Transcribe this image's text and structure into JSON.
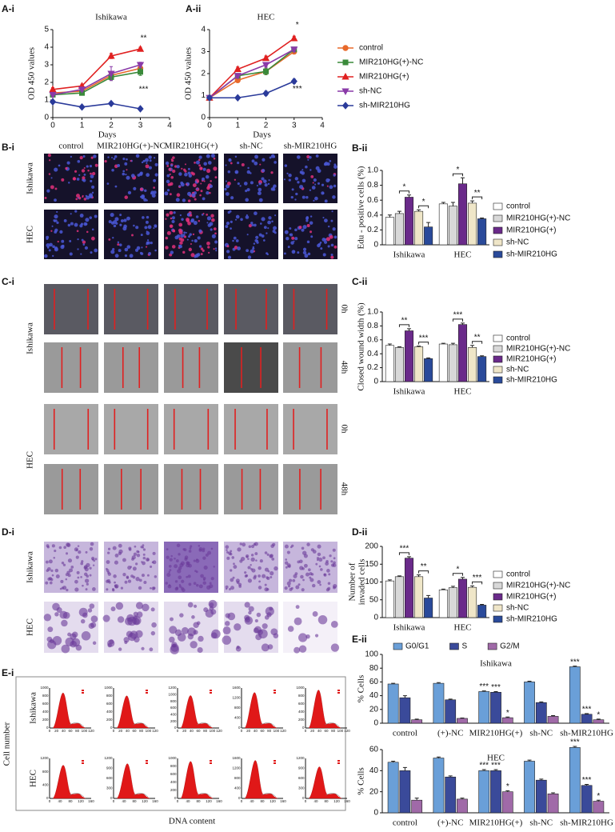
{
  "chart_data": [
    {
      "type": "line",
      "panel": "A-i",
      "title": "Ishikawa",
      "xlabel": "Days",
      "ylabel": [
        "OD 450 values"
      ],
      "x": [
        0,
        1,
        2,
        3
      ],
      "xlim": [
        0,
        4
      ],
      "xticks": [
        0,
        1,
        2,
        3,
        4
      ],
      "ylim": [
        0,
        5
      ],
      "yticks": [
        0,
        1,
        2,
        3,
        4,
        5
      ],
      "legend": "right",
      "series": [
        {
          "name": "control",
          "color": "#e8692a",
          "marker": "circle",
          "values": [
            1.4,
            1.5,
            2.4,
            2.8
          ],
          "errors": [
            0.1,
            0.1,
            0.15,
            0.15
          ]
        },
        {
          "name": "MIR210HG(+)-NC",
          "color": "#3a8a3a",
          "marker": "square",
          "values": [
            1.3,
            1.4,
            2.3,
            2.6
          ],
          "errors": [
            0.1,
            0.1,
            0.15,
            0.2
          ]
        },
        {
          "name": "MIR210HG(+)",
          "color": "#e02020",
          "marker": "triangle",
          "values": [
            1.6,
            1.8,
            3.5,
            3.9
          ],
          "errors": [
            0.1,
            0.1,
            0.15,
            0.1
          ]
        },
        {
          "name": "sh-NC",
          "color": "#8a3aa8",
          "marker": "triangle-down",
          "values": [
            1.3,
            1.6,
            2.5,
            3.0
          ],
          "errors": [
            0.1,
            0.1,
            0.4,
            0.15
          ]
        },
        {
          "name": "sh-MIR210HG",
          "color": "#2a3a9a",
          "marker": "diamond",
          "values": [
            0.9,
            0.6,
            0.8,
            0.5
          ],
          "errors": [
            0.05,
            0.05,
            0.05,
            0.05
          ]
        }
      ],
      "annotations": [
        {
          "text": "**",
          "x": 3,
          "y": 4.5
        },
        {
          "text": "***",
          "x": 3,
          "y": 1.6
        }
      ]
    },
    {
      "type": "line",
      "panel": "A-ii",
      "title": "HEC",
      "xlabel": "Days",
      "ylabel": [
        "OD 450 values"
      ],
      "x": [
        0,
        1,
        2,
        3
      ],
      "xlim": [
        0,
        4
      ],
      "xticks": [
        0,
        1,
        2,
        3,
        4
      ],
      "ylim": [
        0,
        4
      ],
      "yticks": [
        0,
        1,
        2,
        3,
        4
      ],
      "series": [
        {
          "color": "#e8692a",
          "marker": "circle",
          "values": [
            0.9,
            1.7,
            2.1,
            3.0
          ],
          "errors": [
            0.05,
            0.1,
            0.15,
            0.1
          ]
        },
        {
          "color": "#3a8a3a",
          "marker": "square",
          "values": [
            0.9,
            1.9,
            2.1,
            3.1
          ],
          "errors": [
            0.05,
            0.1,
            0.15,
            0.1
          ]
        },
        {
          "color": "#e02020",
          "marker": "triangle",
          "values": [
            0.9,
            2.2,
            2.7,
            3.6
          ],
          "errors": [
            0.05,
            0.1,
            0.1,
            0.1
          ]
        },
        {
          "color": "#8a3aa8",
          "marker": "triangle-down",
          "values": [
            0.9,
            1.9,
            2.4,
            3.1
          ],
          "errors": [
            0.05,
            0.1,
            0.1,
            0.1
          ]
        },
        {
          "color": "#2a3a9a",
          "marker": "diamond",
          "values": [
            0.9,
            0.9,
            1.1,
            1.65
          ],
          "errors": [
            0.05,
            0.05,
            0.1,
            0.1
          ]
        }
      ],
      "annotations": [
        {
          "text": "*",
          "x": 3,
          "y": 4.2
        },
        {
          "text": "***",
          "x": 3,
          "y": 1.3
        }
      ]
    },
    {
      "type": "bar",
      "panel": "B-ii",
      "ylabel": [
        "Edu - positive cells (%)"
      ],
      "categories": [
        "Ishikawa",
        "HEC"
      ],
      "ylim": [
        0,
        1
      ],
      "yticks": [
        0,
        0.2,
        0.4,
        0.6,
        0.8,
        {
          "value": 1,
          "label": "1.0"
        }
      ],
      "legend": "right",
      "series": [
        {
          "name": "control",
          "color": "#ffffff",
          "values": [
            0.37,
            0.55
          ],
          "errors": [
            0.03,
            0.02
          ]
        },
        {
          "name": "MIR210HG(+)-NC",
          "color": "#d8d8d8",
          "values": [
            0.42,
            0.52
          ],
          "errors": [
            0.03,
            0.05
          ]
        },
        {
          "name": "MIR210HG(+)",
          "color": "#6a2a8a",
          "values": [
            0.64,
            0.82
          ],
          "errors": [
            0.03,
            0.08
          ]
        },
        {
          "name": "sh-NC",
          "color": "#efe6c8",
          "values": [
            0.45,
            0.56
          ],
          "errors": [
            0.02,
            0.03
          ]
        },
        {
          "name": "sh-MIR210HG",
          "color": "#2a4a9a",
          "values": [
            0.24,
            0.35
          ],
          "errors": [
            0.06,
            0.01
          ]
        }
      ],
      "brackets": [
        {
          "text": "*",
          "category": "Ishikawa",
          "between": [
            "MIR210HG(+)-NC",
            "MIR210HG(+)"
          ]
        },
        {
          "text": "*",
          "category": "Ishikawa",
          "between": [
            "sh-NC",
            "sh-MIR210HG"
          ]
        },
        {
          "text": "*",
          "category": "HEC",
          "between": [
            "MIR210HG(+)-NC",
            "MIR210HG(+)"
          ]
        },
        {
          "text": "**",
          "category": "HEC",
          "between": [
            "sh-NC",
            "sh-MIR210HG"
          ]
        }
      ]
    },
    {
      "type": "bar",
      "panel": "C-ii",
      "ylabel": [
        "Closed wound width (%)"
      ],
      "categories": [
        "Ishikawa",
        "HEC"
      ],
      "ylim": [
        0,
        1
      ],
      "yticks": [
        0,
        0.2,
        0.4,
        0.6,
        0.8,
        {
          "value": 1,
          "label": "1.0"
        }
      ],
      "legend": "right",
      "series": [
        {
          "name": "control",
          "color": "#ffffff",
          "values": [
            0.52,
            0.54
          ],
          "errors": [
            0.02,
            0.01
          ]
        },
        {
          "name": "MIR210HG(+)-NC",
          "color": "#d8d8d8",
          "values": [
            0.49,
            0.53
          ],
          "errors": [
            0.01,
            0.02
          ]
        },
        {
          "name": "MIR210HG(+)",
          "color": "#6a2a8a",
          "values": [
            0.73,
            0.82
          ],
          "errors": [
            0.03,
            0.02
          ]
        },
        {
          "name": "sh-NC",
          "color": "#efe6c8",
          "values": [
            0.5,
            0.49
          ],
          "errors": [
            0.01,
            0.03
          ]
        },
        {
          "name": "sh-MIR210HG",
          "color": "#2a4a9a",
          "values": [
            0.33,
            0.36
          ],
          "errors": [
            0.01,
            0.01
          ]
        }
      ],
      "brackets": [
        {
          "text": "**",
          "category": "Ishikawa",
          "between": [
            "MIR210HG(+)-NC",
            "MIR210HG(+)"
          ]
        },
        {
          "text": "***",
          "category": "Ishikawa",
          "between": [
            "sh-NC",
            "sh-MIR210HG"
          ]
        },
        {
          "text": "***",
          "category": "HEC",
          "between": [
            "MIR210HG(+)-NC",
            "MIR210HG(+)"
          ]
        },
        {
          "text": "**",
          "category": "HEC",
          "between": [
            "sh-NC",
            "sh-MIR210HG"
          ]
        }
      ]
    },
    {
      "type": "bar",
      "panel": "D-ii",
      "ylabel": [
        "Number of",
        "invaded cells"
      ],
      "categories": [
        "Ishikawa",
        "HEC"
      ],
      "ylim": [
        0,
        200
      ],
      "yticks": [
        0,
        50,
        100,
        150,
        200
      ],
      "legend": "right",
      "series": [
        {
          "name": "control",
          "color": "#ffffff",
          "values": [
            103,
            78
          ],
          "errors": [
            3,
            2
          ]
        },
        {
          "name": "MIR210HG(+)-NC",
          "color": "#d8d8d8",
          "values": [
            115,
            84
          ],
          "errors": [
            2,
            4
          ]
        },
        {
          "name": "MIR210HG(+)",
          "color": "#6a2a8a",
          "values": [
            167,
            108
          ],
          "errors": [
            4,
            5
          ]
        },
        {
          "name": "sh-NC",
          "color": "#efe6c8",
          "values": [
            115,
            85
          ],
          "errors": [
            5,
            4
          ]
        },
        {
          "name": "sh-MIR210HG",
          "color": "#2a4a9a",
          "values": [
            55,
            35
          ],
          "errors": [
            7,
            2
          ]
        }
      ],
      "brackets": [
        {
          "text": "***",
          "category": "Ishikawa",
          "between": [
            "MIR210HG(+)-NC",
            "MIR210HG(+)"
          ]
        },
        {
          "text": "**",
          "category": "Ishikawa",
          "between": [
            "sh-NC",
            "sh-MIR210HG"
          ]
        },
        {
          "text": "*",
          "category": "HEC",
          "between": [
            "MIR210HG(+)-NC",
            "MIR210HG(+)"
          ]
        },
        {
          "text": "***",
          "category": "HEC",
          "between": [
            "sh-NC",
            "sh-MIR210HG"
          ]
        }
      ]
    },
    {
      "type": "bar",
      "panel": "E-ii",
      "title": "Ishikawa",
      "ylabel": [
        "% Cells"
      ],
      "categories": [
        "control",
        "(+)-NC",
        "MIR210HG(+)",
        "sh-NC",
        "sh-MIR210HG"
      ],
      "ylim": [
        0,
        100
      ],
      "yticks": [
        0,
        20,
        40,
        60,
        80,
        100
      ],
      "legend": "top",
      "series": [
        {
          "name": "G0/G1",
          "color": "#6a9fd8",
          "values": [
            57,
            58,
            46,
            60,
            82
          ],
          "errors": [
            1,
            1,
            1,
            1,
            1
          ],
          "stars": [
            null,
            null,
            "***",
            null,
            "***"
          ]
        },
        {
          "name": "S",
          "color": "#3a4a9a",
          "values": [
            37,
            34,
            45,
            30,
            13
          ],
          "errors": [
            3,
            1,
            1,
            1,
            1
          ],
          "stars": [
            null,
            null,
            "***",
            null,
            "***"
          ]
        },
        {
          "name": "G2/M",
          "color": "#a06aa8",
          "values": [
            5,
            7,
            8,
            10,
            5
          ],
          "errors": [
            1,
            0.5,
            1,
            1,
            1
          ],
          "stars": [
            null,
            null,
            "*",
            null,
            "*"
          ]
        }
      ]
    },
    {
      "type": "bar",
      "title": "HEC",
      "ylabel": [
        "% Cells"
      ],
      "categories": [
        "control",
        "(+)-NC",
        "MIR210HG(+)",
        "sh-NC",
        "sh-MIR210HG"
      ],
      "ylim": [
        0,
        60
      ],
      "yticks": [
        0,
        20,
        40,
        60
      ],
      "series": [
        {
          "color": "#6a9fd8",
          "values": [
            48,
            52,
            40,
            49,
            62
          ],
          "errors": [
            1,
            1,
            1,
            1,
            1
          ],
          "stars": [
            null,
            null,
            "***",
            null,
            "***"
          ]
        },
        {
          "color": "#3a4a9a",
          "values": [
            40,
            34,
            40,
            31,
            26
          ],
          "errors": [
            3,
            1,
            1,
            1,
            1
          ],
          "stars": [
            null,
            null,
            "***",
            null,
            "***"
          ]
        },
        {
          "color": "#a06aa8",
          "values": [
            12,
            13,
            20,
            18,
            11
          ],
          "errors": [
            2,
            1,
            1,
            1,
            1
          ],
          "stars": [
            null,
            null,
            "*",
            null,
            "*"
          ]
        }
      ]
    }
  ],
  "micrographs": {
    "B": {
      "panel": "B-i",
      "columns": [
        "control",
        "MIR210HG(+)-NC",
        "MIR210HG(+)",
        "sh-NC",
        "sh-MIR210HG"
      ],
      "rows": [
        "Ishikawa",
        "HEC"
      ]
    },
    "C": {
      "panel": "C-i",
      "rows": [
        "Ishikawa",
        "HEC"
      ],
      "times": [
        "0h",
        "48h",
        "0h",
        "48h"
      ]
    },
    "D": {
      "panel": "D-i",
      "rows": [
        "Ishikawa",
        "HEC"
      ]
    }
  },
  "flow": {
    "panel": "E-i",
    "ylabel": "Cell number",
    "xlabel": "DNA content",
    "rows": [
      {
        "name": "Ishikawa",
        "plots": [
          {
            "xticks": [
              0,
              20,
              40,
              60,
              80,
              100,
              120
            ],
            "yticks": [
              0,
              200,
              400,
              600,
              800,
              1000
            ]
          },
          {
            "xticks": [
              0,
              20,
              40,
              60,
              80,
              100,
              120
            ],
            "yticks": [
              0,
              200,
              400,
              600,
              800,
              1000
            ]
          },
          {
            "xticks": [
              0,
              20,
              40,
              60,
              80,
              100,
              120
            ],
            "yticks": [
              0,
              200,
              400,
              600,
              800,
              1000,
              1200
            ]
          },
          {
            "xticks": [
              0,
              20,
              40,
              60,
              80,
              100,
              120
            ],
            "yticks": [
              0,
              400,
              800,
              1200,
              1600
            ]
          },
          {
            "xticks": [
              0,
              20,
              40,
              60,
              80,
              100,
              120
            ],
            "yticks": [
              0,
              200,
              400,
              600,
              800,
              1000
            ]
          }
        ]
      },
      {
        "name": "HEC",
        "plots": [
          {
            "xticks": [
              0,
              40,
              80,
              120,
              160
            ],
            "yticks": [
              0,
              400,
              800,
              1200
            ]
          },
          {
            "xticks": [
              0,
              40,
              80,
              120,
              160
            ],
            "yticks": [
              0,
              300,
              600,
              900,
              1200
            ]
          },
          {
            "xticks": [
              0,
              40,
              80,
              120,
              160
            ],
            "yticks": [
              0,
              200,
              400,
              600,
              800,
              1000
            ]
          },
          {
            "xticks": [
              0,
              40,
              80,
              120,
              160
            ],
            "yticks": [
              0,
              400,
              800,
              1200,
              1600
            ]
          },
          {
            "xticks": [
              0,
              40,
              80,
              120,
              160
            ],
            "yticks": [
              0,
              300,
              600,
              900,
              1200
            ]
          }
        ]
      }
    ]
  }
}
